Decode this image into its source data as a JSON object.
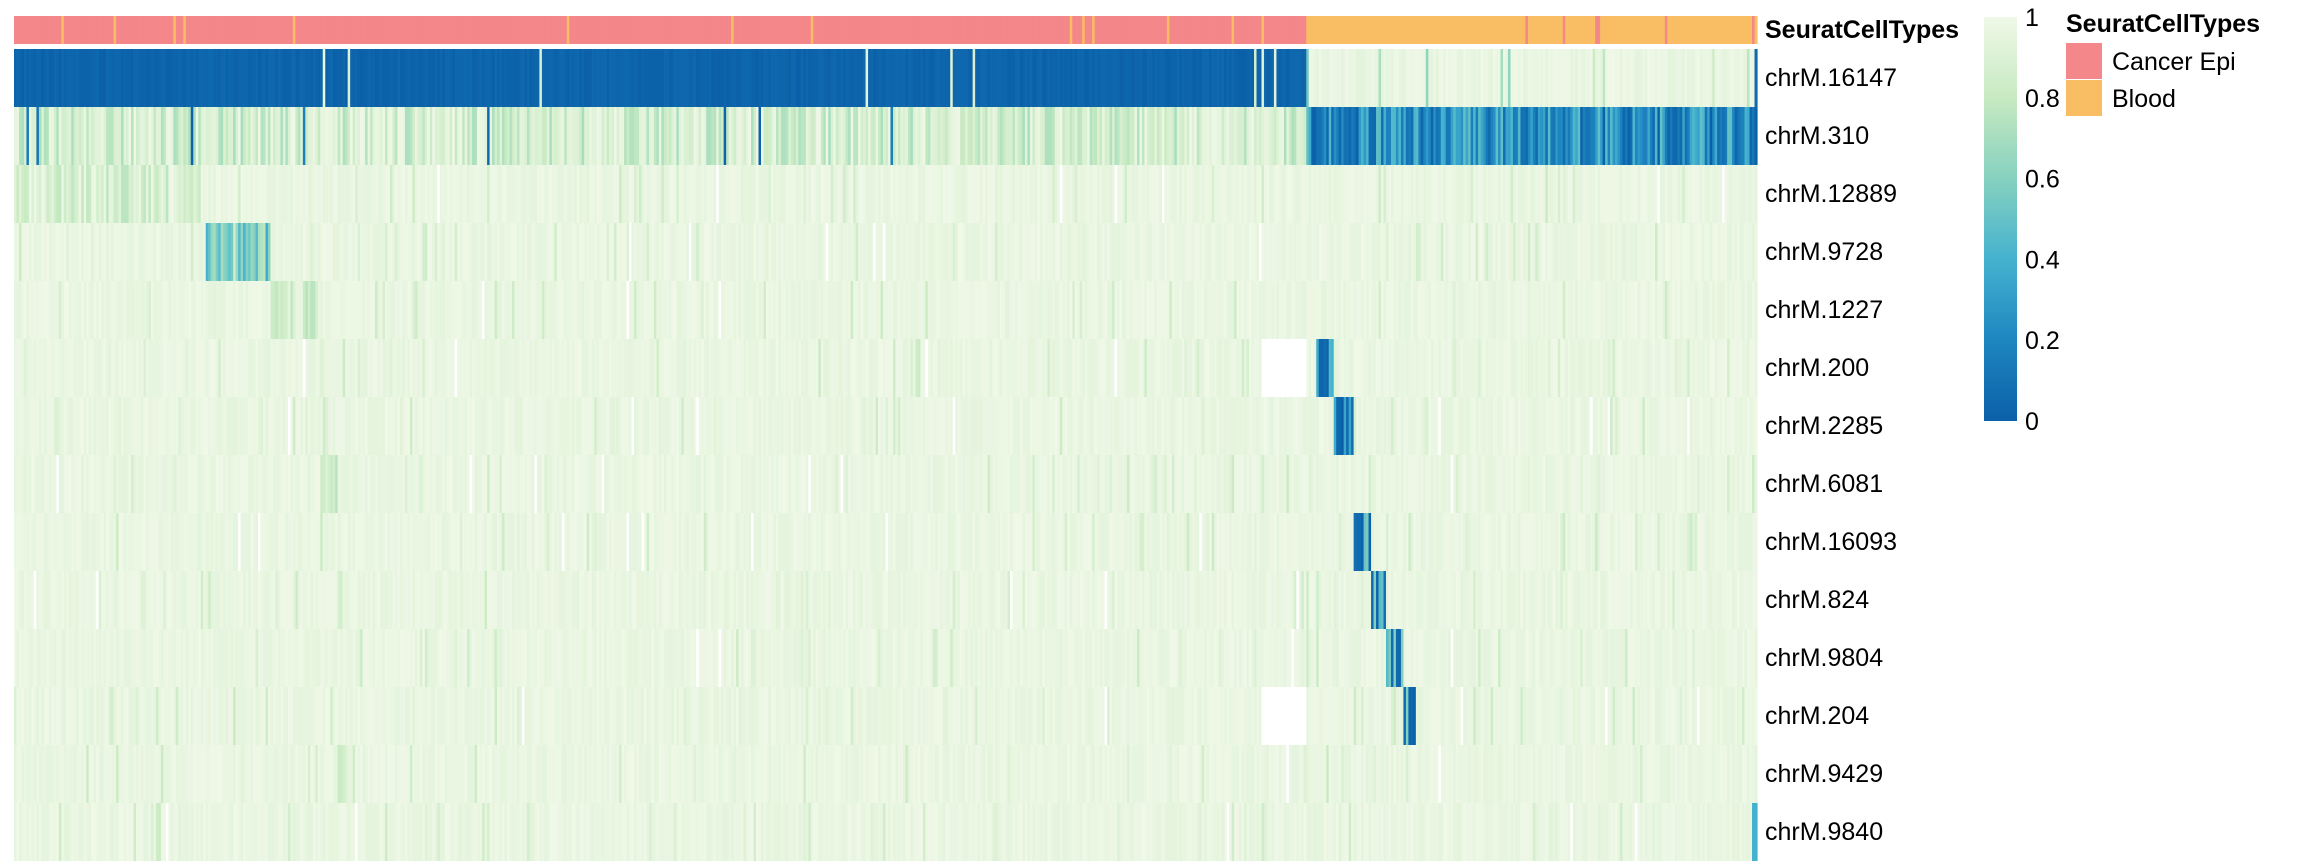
{
  "chart_data": {
    "type": "heatmap",
    "annotation": {
      "name": "SeuratCellTypes",
      "categories": [
        "Cancer Epi",
        "Blood"
      ],
      "colors": {
        "Cancer Epi": "#F4878A",
        "Blood": "#F9BE64"
      },
      "column_fraction": {
        "Cancer Epi": 0.741,
        "Blood": 0.259
      }
    },
    "rows": [
      "chrM.16147",
      "chrM.310",
      "chrM.12889",
      "chrM.9728",
      "chrM.1227",
      "chrM.200",
      "chrM.2285",
      "chrM.6081",
      "chrM.16093",
      "chrM.824",
      "chrM.9804",
      "chrM.204",
      "chrM.9429",
      "chrM.9840"
    ],
    "colorbar": {
      "ticks": [
        "0",
        "0.2",
        "0.4",
        "0.6",
        "0.8",
        "1"
      ],
      "range": [
        0,
        1
      ],
      "stops": [
        {
          "v": 0,
          "color": "#0B60A8"
        },
        {
          "v": 0.2,
          "color": "#1E86C0"
        },
        {
          "v": 0.4,
          "color": "#45B2CF"
        },
        {
          "v": 0.6,
          "color": "#86D1BF"
        },
        {
          "v": 0.8,
          "color": "#C7EAC1"
        },
        {
          "v": 1,
          "color": "#F0F8E8"
        }
      ]
    },
    "legend": {
      "title": "SeuratCellTypes",
      "items": [
        "Cancer Epi",
        "Blood"
      ],
      "position": "right"
    }
  }
}
